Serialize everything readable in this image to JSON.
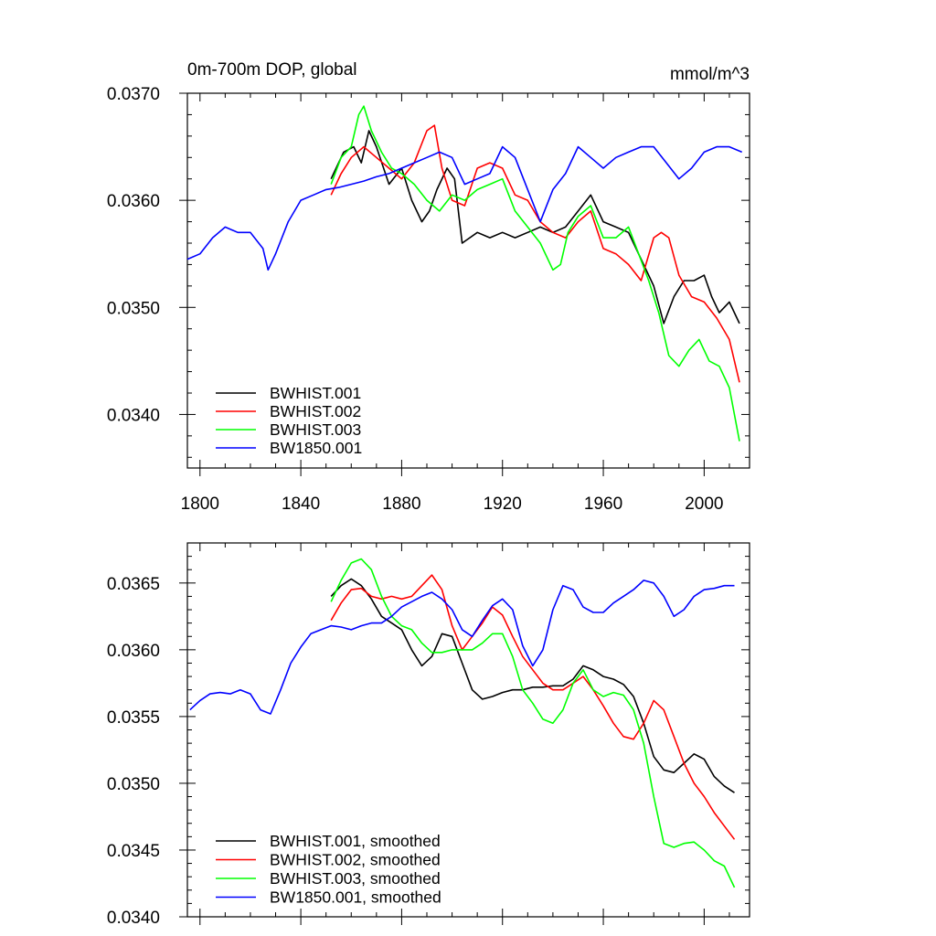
{
  "figure": {
    "top_title": "0m-700m DOP, global",
    "top_units": "mmol/m^3"
  },
  "colors": {
    "BWHIST.001": "#000000",
    "BWHIST.002": "#ff0000",
    "BWHIST.003": "#00ff00",
    "BW1850.001": "#0000ff"
  },
  "chart_data": [
    {
      "type": "line",
      "title": "0m-700m DOP, global",
      "units": "mmol/m^3",
      "xlabel": "",
      "ylabel": "",
      "xlim": [
        1795,
        2018
      ],
      "ylim": [
        0.0335,
        0.037
      ],
      "xticks": [
        1800,
        1840,
        1880,
        1920,
        1960,
        2000
      ],
      "xtick_labels": [
        "1800",
        "1840",
        "1880",
        "1920",
        "1960",
        "2000"
      ],
      "yticks": [
        0.034,
        0.035,
        0.036,
        0.037
      ],
      "ytick_labels": [
        "0.0340",
        "0.0350",
        "0.0360",
        "0.0370"
      ],
      "legend": {
        "position": "bottom-left",
        "entries": [
          "BWHIST.001",
          "BWHIST.002",
          "BWHIST.003",
          "BW1850.001"
        ]
      },
      "series": [
        {
          "name": "BWHIST.001",
          "color": "#000000",
          "x": [
            1852,
            1857,
            1861,
            1864,
            1867,
            1870,
            1875,
            1880,
            1884,
            1888,
            1891,
            1894,
            1898,
            1901,
            1904,
            1910,
            1915,
            1920,
            1925,
            1930,
            1935,
            1940,
            1945,
            1950,
            1955,
            1960,
            1965,
            1970,
            1975,
            1980,
            1984,
            1988,
            1992,
            1996,
            2000,
            2003,
            2006,
            2010,
            2014
          ],
          "y": [
            0.0362,
            0.03645,
            0.0365,
            0.03635,
            0.03665,
            0.0365,
            0.03615,
            0.0363,
            0.036,
            0.0358,
            0.0359,
            0.0361,
            0.0363,
            0.0362,
            0.0356,
            0.0357,
            0.03565,
            0.0357,
            0.03565,
            0.0357,
            0.03575,
            0.0357,
            0.03575,
            0.0359,
            0.03605,
            0.0358,
            0.03575,
            0.0357,
            0.03545,
            0.0352,
            0.03485,
            0.0351,
            0.03525,
            0.03525,
            0.0353,
            0.0351,
            0.03495,
            0.03505,
            0.03485
          ]
        },
        {
          "name": "BWHIST.002",
          "color": "#ff0000",
          "x": [
            1852,
            1856,
            1860,
            1865,
            1870,
            1875,
            1880,
            1885,
            1890,
            1893,
            1896,
            1900,
            1905,
            1910,
            1915,
            1920,
            1925,
            1930,
            1935,
            1940,
            1945,
            1950,
            1955,
            1960,
            1965,
            1970,
            1975,
            1980,
            1983,
            1986,
            1990,
            1995,
            2000,
            2005,
            2010,
            2014
          ],
          "y": [
            0.03605,
            0.03625,
            0.0364,
            0.0365,
            0.0364,
            0.0363,
            0.0362,
            0.03635,
            0.03665,
            0.0367,
            0.0363,
            0.036,
            0.03595,
            0.0363,
            0.03635,
            0.0363,
            0.03605,
            0.036,
            0.0358,
            0.0357,
            0.03565,
            0.0358,
            0.0359,
            0.03555,
            0.0355,
            0.0354,
            0.03525,
            0.03565,
            0.0357,
            0.03565,
            0.0353,
            0.0351,
            0.03505,
            0.0349,
            0.0347,
            0.0343
          ]
        },
        {
          "name": "BWHIST.003",
          "color": "#00ff00",
          "x": [
            1852,
            1856,
            1860,
            1863,
            1865,
            1868,
            1872,
            1876,
            1880,
            1885,
            1890,
            1895,
            1900,
            1905,
            1910,
            1915,
            1920,
            1925,
            1930,
            1935,
            1940,
            1943,
            1946,
            1950,
            1955,
            1960,
            1965,
            1970,
            1974,
            1978,
            1982,
            1986,
            1990,
            1994,
            1998,
            2002,
            2006,
            2010,
            2014
          ],
          "y": [
            0.03615,
            0.0364,
            0.0365,
            0.0368,
            0.03688,
            0.03665,
            0.03645,
            0.0363,
            0.03625,
            0.03615,
            0.036,
            0.0359,
            0.03605,
            0.036,
            0.0361,
            0.03615,
            0.0362,
            0.0359,
            0.03575,
            0.0356,
            0.03535,
            0.0354,
            0.0357,
            0.03585,
            0.03595,
            0.03565,
            0.03565,
            0.03575,
            0.0355,
            0.03525,
            0.03495,
            0.03455,
            0.03445,
            0.0346,
            0.0347,
            0.0345,
            0.03445,
            0.03425,
            0.03375
          ]
        },
        {
          "name": "BW1850.001",
          "color": "#0000ff",
          "x": [
            1795,
            1800,
            1805,
            1810,
            1815,
            1820,
            1825,
            1827,
            1830,
            1835,
            1840,
            1845,
            1850,
            1855,
            1860,
            1865,
            1870,
            1875,
            1880,
            1885,
            1890,
            1895,
            1900,
            1905,
            1910,
            1915,
            1920,
            1925,
            1930,
            1935,
            1940,
            1945,
            1950,
            1955,
            1960,
            1965,
            1970,
            1975,
            1980,
            1985,
            1990,
            1995,
            2000,
            2005,
            2010,
            2015
          ],
          "y": [
            0.03545,
            0.0355,
            0.03565,
            0.03575,
            0.0357,
            0.0357,
            0.03555,
            0.03535,
            0.0355,
            0.0358,
            0.036,
            0.03605,
            0.0361,
            0.03612,
            0.03615,
            0.03618,
            0.03622,
            0.03625,
            0.0363,
            0.03635,
            0.0364,
            0.03645,
            0.0364,
            0.03615,
            0.0362,
            0.03625,
            0.0365,
            0.0364,
            0.0361,
            0.0358,
            0.0361,
            0.03625,
            0.0365,
            0.0364,
            0.0363,
            0.0364,
            0.03645,
            0.0365,
            0.0365,
            0.03635,
            0.0362,
            0.0363,
            0.03645,
            0.0365,
            0.0365,
            0.03645
          ]
        }
      ]
    },
    {
      "type": "line",
      "title": "",
      "xlabel": "",
      "ylabel": "",
      "xlim": [
        1795,
        2018
      ],
      "ylim": [
        0.034,
        0.0368
      ],
      "xticks": [
        1800,
        1840,
        1880,
        1920,
        1960,
        2000
      ],
      "yticks": [
        0.034,
        0.0345,
        0.035,
        0.0355,
        0.036,
        0.0365
      ],
      "ytick_labels": [
        "0.0340",
        "0.0345",
        "0.0350",
        "0.0355",
        "0.0360",
        "0.0365"
      ],
      "legend": {
        "position": "bottom-left",
        "entries": [
          "BWHIST.001, smoothed",
          "BWHIST.002, smoothed",
          "BWHIST.003, smoothed",
          "BW1850.001, smoothed"
        ]
      },
      "series": [
        {
          "name": "BWHIST.001, smoothed",
          "color": "#000000",
          "x": [
            1852,
            1856,
            1860,
            1864,
            1868,
            1872,
            1876,
            1880,
            1884,
            1888,
            1892,
            1896,
            1900,
            1904,
            1908,
            1912,
            1916,
            1920,
            1924,
            1928,
            1932,
            1936,
            1940,
            1944,
            1948,
            1952,
            1956,
            1960,
            1964,
            1968,
            1972,
            1976,
            1980,
            1984,
            1988,
            1992,
            1996,
            2000,
            2004,
            2008,
            2012
          ],
          "y": [
            0.0364,
            0.03648,
            0.03653,
            0.03648,
            0.03638,
            0.03625,
            0.0362,
            0.03615,
            0.036,
            0.03588,
            0.03595,
            0.03612,
            0.0361,
            0.0359,
            0.0357,
            0.03563,
            0.03565,
            0.03568,
            0.0357,
            0.0357,
            0.03572,
            0.03572,
            0.03573,
            0.03573,
            0.03578,
            0.03588,
            0.03585,
            0.0358,
            0.03578,
            0.03574,
            0.03565,
            0.03545,
            0.0352,
            0.0351,
            0.03508,
            0.03515,
            0.03522,
            0.03518,
            0.03505,
            0.03498,
            0.03493
          ]
        },
        {
          "name": "BWHIST.002, smoothed",
          "color": "#ff0000",
          "x": [
            1852,
            1856,
            1860,
            1864,
            1868,
            1872,
            1876,
            1880,
            1884,
            1888,
            1892,
            1896,
            1900,
            1904,
            1908,
            1912,
            1916,
            1920,
            1924,
            1928,
            1932,
            1936,
            1940,
            1944,
            1948,
            1952,
            1956,
            1960,
            1964,
            1968,
            1972,
            1976,
            1980,
            1984,
            1988,
            1992,
            1996,
            2000,
            2004,
            2008,
            2012
          ],
          "y": [
            0.03622,
            0.03635,
            0.03645,
            0.03646,
            0.0364,
            0.03638,
            0.0364,
            0.03638,
            0.0364,
            0.03648,
            0.03656,
            0.03645,
            0.03618,
            0.036,
            0.0361,
            0.0362,
            0.03632,
            0.03626,
            0.0361,
            0.03595,
            0.03585,
            0.03575,
            0.0357,
            0.0357,
            0.03575,
            0.0358,
            0.0357,
            0.03558,
            0.03545,
            0.03535,
            0.03533,
            0.03545,
            0.03562,
            0.03555,
            0.03535,
            0.03515,
            0.035,
            0.0349,
            0.03478,
            0.03468,
            0.03458
          ]
        },
        {
          "name": "BWHIST.003, smoothed",
          "color": "#00ff00",
          "x": [
            1852,
            1856,
            1860,
            1864,
            1868,
            1872,
            1876,
            1880,
            1884,
            1888,
            1892,
            1896,
            1900,
            1904,
            1908,
            1912,
            1916,
            1920,
            1924,
            1928,
            1932,
            1936,
            1940,
            1944,
            1948,
            1952,
            1956,
            1960,
            1964,
            1968,
            1972,
            1976,
            1980,
            1984,
            1988,
            1992,
            1996,
            2000,
            2004,
            2008,
            2012
          ],
          "y": [
            0.03636,
            0.03652,
            0.03665,
            0.03668,
            0.0366,
            0.0364,
            0.03625,
            0.03618,
            0.03615,
            0.03605,
            0.03598,
            0.03598,
            0.036,
            0.036,
            0.036,
            0.03605,
            0.03612,
            0.03612,
            0.03595,
            0.0357,
            0.0356,
            0.03548,
            0.03545,
            0.03555,
            0.03575,
            0.03585,
            0.0357,
            0.03565,
            0.03568,
            0.03566,
            0.03555,
            0.0353,
            0.0349,
            0.03455,
            0.03452,
            0.03455,
            0.03456,
            0.0345,
            0.03442,
            0.03438,
            0.03422
          ]
        },
        {
          "name": "BW1850.001, smoothed",
          "color": "#0000ff",
          "x": [
            1796,
            1800,
            1804,
            1808,
            1812,
            1816,
            1820,
            1824,
            1828,
            1832,
            1836,
            1840,
            1844,
            1848,
            1852,
            1856,
            1860,
            1864,
            1868,
            1872,
            1876,
            1880,
            1884,
            1888,
            1892,
            1896,
            1900,
            1904,
            1908,
            1912,
            1916,
            1920,
            1924,
            1928,
            1932,
            1936,
            1940,
            1944,
            1948,
            1952,
            1956,
            1960,
            1964,
            1968,
            1972,
            1976,
            1980,
            1984,
            1988,
            1992,
            1996,
            2000,
            2004,
            2008,
            2012
          ],
          "y": [
            0.03555,
            0.03562,
            0.03567,
            0.03568,
            0.03567,
            0.0357,
            0.03567,
            0.03555,
            0.03552,
            0.0357,
            0.0359,
            0.03602,
            0.03612,
            0.03615,
            0.03618,
            0.03617,
            0.03615,
            0.03618,
            0.0362,
            0.0362,
            0.03625,
            0.03632,
            0.03636,
            0.0364,
            0.03643,
            0.03638,
            0.0363,
            0.03615,
            0.0361,
            0.03622,
            0.03633,
            0.03638,
            0.0363,
            0.03603,
            0.03588,
            0.036,
            0.0363,
            0.03648,
            0.03645,
            0.03632,
            0.03628,
            0.03628,
            0.03635,
            0.0364,
            0.03645,
            0.03652,
            0.0365,
            0.0364,
            0.03625,
            0.0363,
            0.0364,
            0.03645,
            0.03646,
            0.03648,
            0.03648
          ]
        }
      ]
    }
  ]
}
